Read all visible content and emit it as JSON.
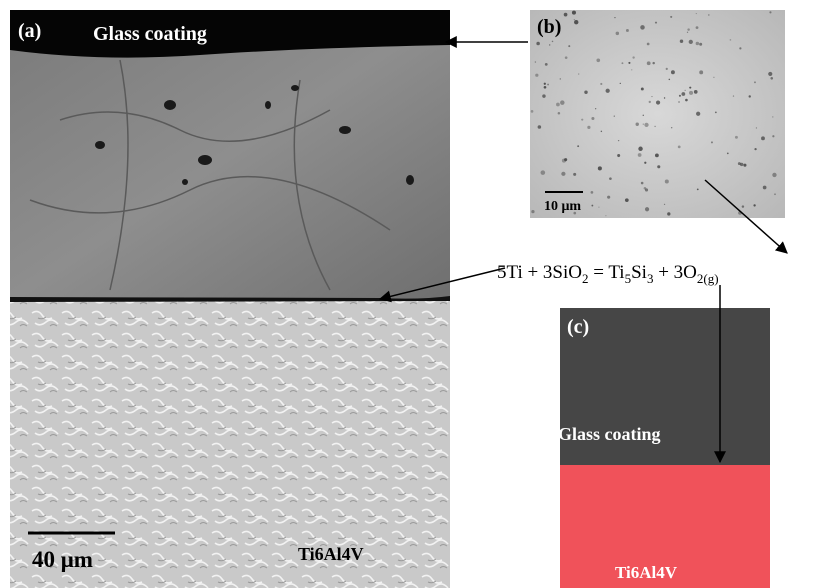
{
  "panel_a": {
    "label": "(a)",
    "coating": "Glass coating",
    "scale": "40 μm",
    "substrate": "Ti6Al4V"
  },
  "panel_b": {
    "label": "(b)",
    "scale": "10 μm"
  },
  "equation": {
    "parts": [
      "5Ti + 3SiO",
      "2",
      " = Ti",
      "5",
      "Si",
      "3",
      " + 3O",
      "2(g)"
    ]
  },
  "panel_c": {
    "label": "(c)",
    "coating": "Glass coating",
    "substrate": "Ti6Al4V"
  }
}
